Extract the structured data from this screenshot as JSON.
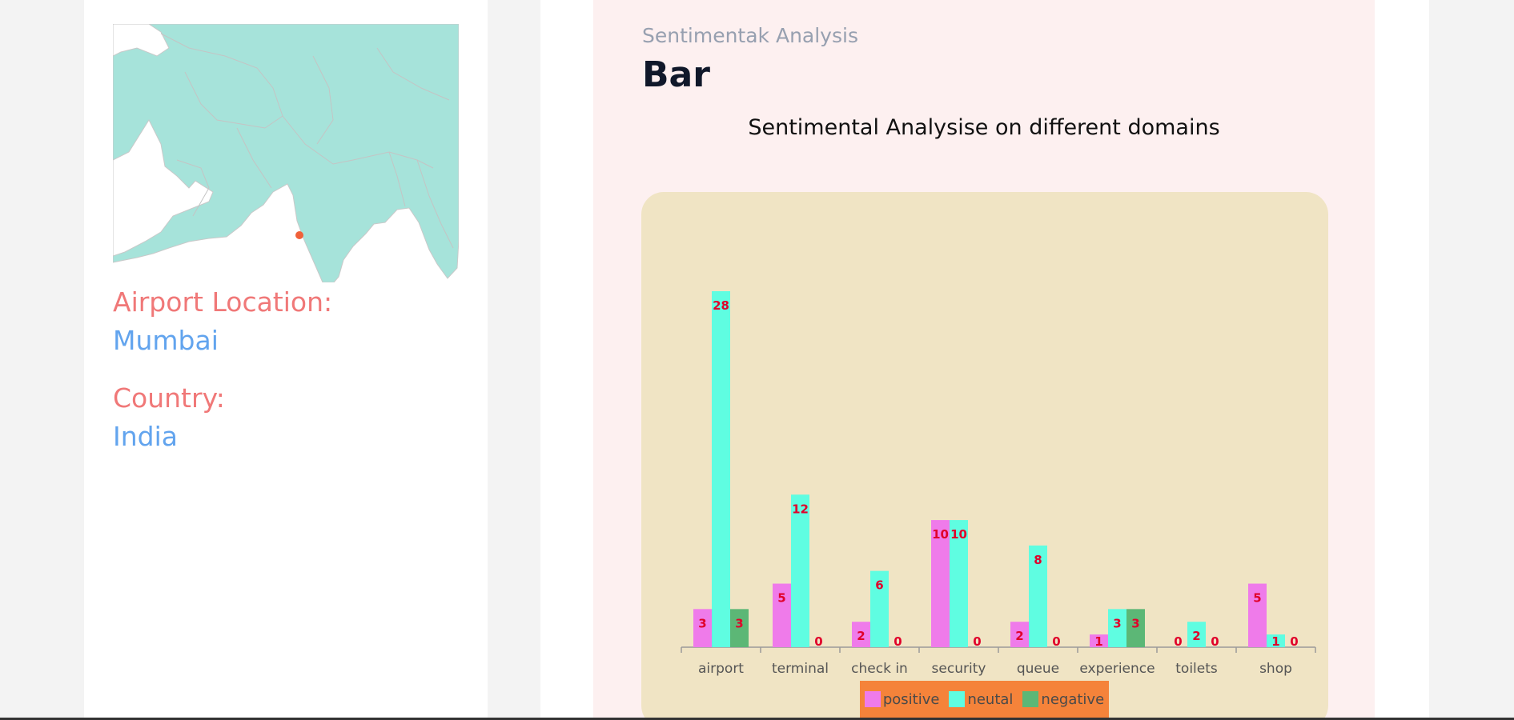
{
  "location": {
    "airport_label": "Airport Location:",
    "airport_value": "Mumbai",
    "country_label": "Country:",
    "country_value": "India"
  },
  "header": {
    "subtitle": "Sentimentak Analysis",
    "title": "Bar"
  },
  "colors": {
    "positive": "#ef7bea",
    "neutral": "#5ffde1",
    "negative": "#5cb776",
    "value_label": "#e0002a",
    "legend_bg": "#f5833a",
    "chart_bg": "#f0e4c4",
    "map_land": "#a6e3da",
    "map_marker": "#f0613a"
  },
  "chart_data": {
    "type": "bar",
    "title": "Sentimental Analysise on different domains",
    "categories": [
      "airport",
      "terminal",
      "check in",
      "security",
      "queue",
      "experience",
      "toilets",
      "shop"
    ],
    "series": [
      {
        "name": "positive",
        "values": [
          3,
          5,
          2,
          10,
          2,
          1,
          0,
          5
        ]
      },
      {
        "name": "neutal",
        "values": [
          28,
          12,
          6,
          10,
          8,
          3,
          2,
          1
        ]
      },
      {
        "name": "negative",
        "values": [
          3,
          0,
          0,
          0,
          0,
          3,
          0,
          0
        ]
      }
    ],
    "ylim": [
      0,
      28
    ],
    "grid": false,
    "legend": "bottom-center",
    "data_labels": true
  }
}
